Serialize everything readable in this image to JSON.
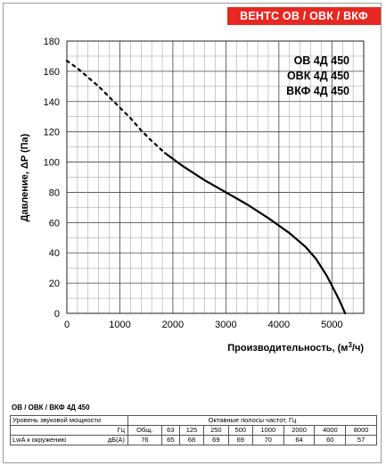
{
  "brand_label": "ВЕНТС ОВ / ОВК / ВКФ",
  "models": [
    "ОВ 4Д 450",
    "ОВК 4Д 450",
    "ВКФ 4Д 450"
  ],
  "chart_data": {
    "type": "line",
    "ylabel": "Давление, ΔP (Па)",
    "xlabel_main": "Производительность, (м",
    "xlabel_sup": "3",
    "xlabel_tail": "/ч)",
    "xlim": [
      0,
      5600
    ],
    "ylim": [
      0,
      180
    ],
    "x_ticks": [
      0,
      1000,
      2000,
      3000,
      4000,
      5000
    ],
    "y_ticks": [
      0,
      20,
      40,
      60,
      80,
      100,
      120,
      140,
      160,
      180
    ],
    "grid": true,
    "series": [
      {
        "style": "dashed",
        "x": [
          0,
          200,
          400,
          600,
          800,
          1000,
          1200,
          1400,
          1600,
          1850
        ],
        "y": [
          167,
          162,
          156,
          150,
          143,
          136,
          129,
          121,
          114,
          106
        ]
      },
      {
        "style": "solid",
        "x": [
          1850,
          2200,
          2600,
          3000,
          3400,
          3800,
          4200,
          4500,
          4700,
          4900,
          5050,
          5150,
          5250
        ],
        "y": [
          106,
          97,
          88,
          80,
          72,
          63,
          53,
          44,
          36,
          25,
          15,
          8,
          0
        ]
      }
    ]
  },
  "sound_table": {
    "title": "ОВ / ОВК / ВКФ 4Д 450",
    "row1_label": "Уровень звуковой мощности",
    "row1_header": "Октавные полосы частот, Гц",
    "row2_unit": "Гц",
    "row2_cols": [
      "Общ.",
      "63",
      "125",
      "250",
      "500",
      "1000",
      "2000",
      "4000",
      "8000"
    ],
    "row3_label": "LwA к окружению",
    "row3_unit": "дБ(А)",
    "row3_values": [
      "76",
      "65",
      "68",
      "69",
      "69",
      "70",
      "64",
      "60",
      "57"
    ]
  }
}
